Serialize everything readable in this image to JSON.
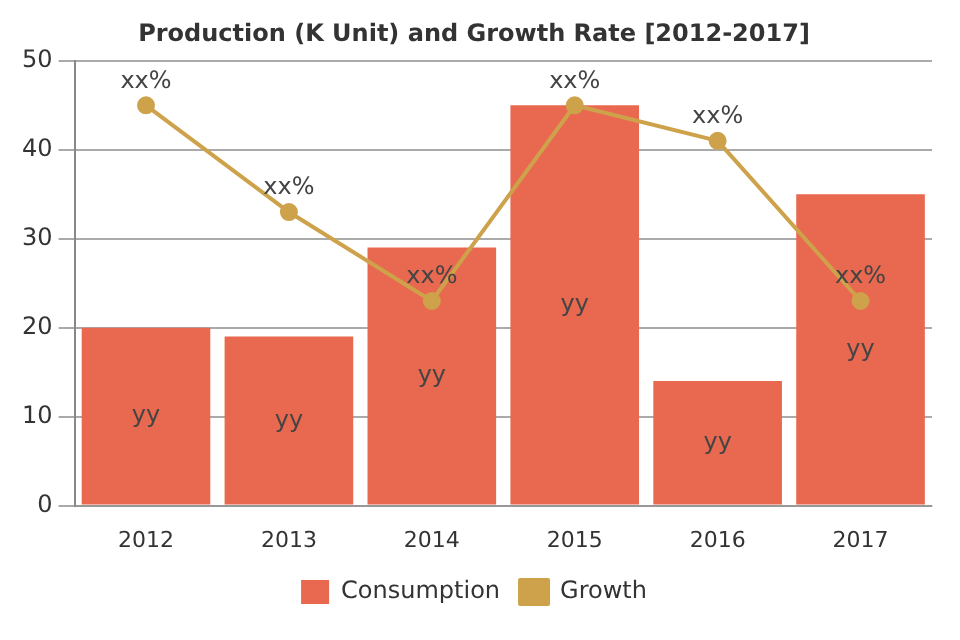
{
  "chart_data": {
    "type": "bar",
    "title": "Production (K Unit) and Growth Rate [2012-2017]",
    "categories": [
      "2012",
      "2013",
      "2014",
      "2015",
      "2016",
      "2017"
    ],
    "series": [
      {
        "name": "Consumption",
        "color": "#e8694f",
        "values": [
          20,
          19,
          29,
          45,
          14,
          35
        ],
        "value_labels": [
          "yy",
          "yy",
          "yy",
          "yy",
          "yy",
          "yy"
        ]
      },
      {
        "name": "Growth",
        "type": "line",
        "color": "#cda24a",
        "values": [
          45,
          33,
          23,
          45,
          41,
          23
        ],
        "value_labels": [
          "xx%",
          "xx%",
          "xx%",
          "xx%",
          "xx%",
          "xx%"
        ],
        "marker": "circle"
      }
    ],
    "ylim": [
      0,
      50
    ],
    "yticks": [
      0,
      10,
      20,
      30,
      40,
      50
    ],
    "grid": "y",
    "legend": "bottom"
  }
}
